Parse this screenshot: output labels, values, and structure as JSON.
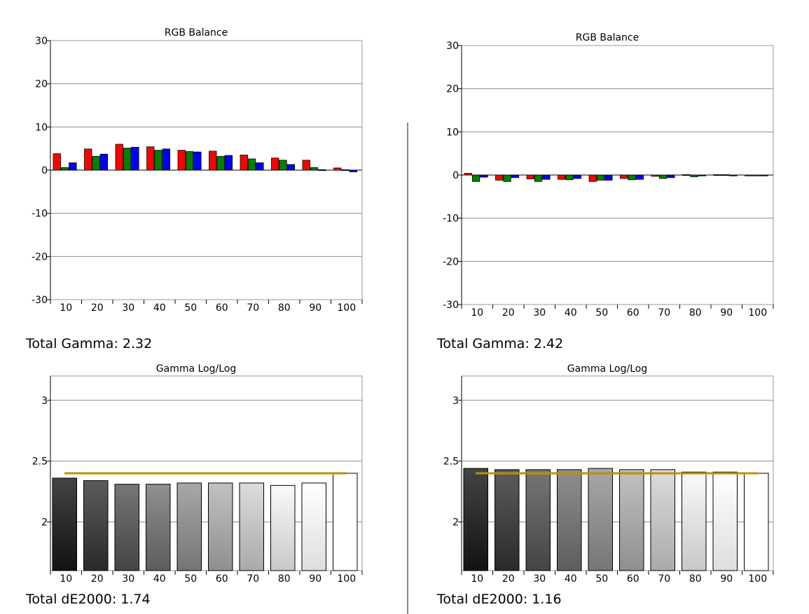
{
  "chart_data": [
    {
      "type": "bar",
      "title": "RGB Balance",
      "categories": [
        "10",
        "20",
        "30",
        "40",
        "50",
        "60",
        "70",
        "80",
        "90",
        "100"
      ],
      "ylim": [
        -30,
        30
      ],
      "yticks": [
        "30",
        "20",
        "10",
        "0",
        "-10",
        "-20",
        "-30"
      ],
      "series": [
        {
          "name": "Red",
          "color": "#ff0000",
          "values": [
            3.8,
            4.9,
            6.0,
            5.4,
            4.6,
            4.4,
            3.5,
            2.8,
            2.3,
            0.5
          ]
        },
        {
          "name": "Green",
          "color": "#008000",
          "values": [
            0.6,
            3.2,
            5.1,
            4.6,
            4.3,
            3.2,
            2.6,
            2.3,
            0.6,
            0.1
          ]
        },
        {
          "name": "Blue",
          "color": "#0000ff",
          "values": [
            1.7,
            3.7,
            5.3,
            4.9,
            4.2,
            3.4,
            1.7,
            1.3,
            0.1,
            -0.4
          ]
        }
      ],
      "summary": "Total Gamma: 2.32"
    },
    {
      "type": "bar",
      "title": "RGB Balance",
      "categories": [
        "10",
        "20",
        "30",
        "40",
        "50",
        "60",
        "70",
        "80",
        "90",
        "100"
      ],
      "ylim": [
        -30,
        30
      ],
      "yticks": [
        "30",
        "20",
        "10",
        "0",
        "-10",
        "-20",
        "-30"
      ],
      "series": [
        {
          "name": "Red",
          "color": "#ff0000",
          "values": [
            0.4,
            -1.2,
            -0.9,
            -1.0,
            -1.5,
            -0.8,
            -0.3,
            0.1,
            0.1,
            0.0
          ]
        },
        {
          "name": "Green",
          "color": "#008000",
          "values": [
            -1.5,
            -1.5,
            -1.5,
            -1.1,
            -1.2,
            -1.1,
            -0.8,
            -0.4,
            0.1,
            0.0
          ]
        },
        {
          "name": "Blue",
          "color": "#0000ff",
          "values": [
            -0.5,
            -0.6,
            -1.0,
            -0.8,
            -1.2,
            -1.0,
            -0.6,
            0.0,
            0.0,
            0.0
          ]
        }
      ],
      "summary": "Total Gamma: 2.42"
    },
    {
      "type": "bar",
      "title": "Gamma Log/Log",
      "categories": [
        "10",
        "20",
        "30",
        "40",
        "50",
        "60",
        "70",
        "80",
        "90",
        "100"
      ],
      "ylim": [
        1.6,
        3.2
      ],
      "yticks": [
        "3",
        "2.5",
        "2"
      ],
      "values": [
        2.36,
        2.34,
        2.31,
        2.31,
        2.32,
        2.32,
        2.32,
        2.3,
        2.32,
        2.4
      ],
      "target": 2.4,
      "target_color": "#bf9000",
      "summary": "Total dE2000: 1.74"
    },
    {
      "type": "bar",
      "title": "Gamma Log/Log",
      "categories": [
        "10",
        "20",
        "30",
        "40",
        "50",
        "60",
        "70",
        "80",
        "90",
        "100"
      ],
      "ylim": [
        1.6,
        3.2
      ],
      "yticks": [
        "3",
        "2.5",
        "2"
      ],
      "values": [
        2.44,
        2.43,
        2.43,
        2.43,
        2.44,
        2.43,
        2.43,
        2.41,
        2.41,
        2.4
      ],
      "target": 2.4,
      "target_color": "#bf9000",
      "summary": "Total dE2000: 1.16"
    }
  ]
}
